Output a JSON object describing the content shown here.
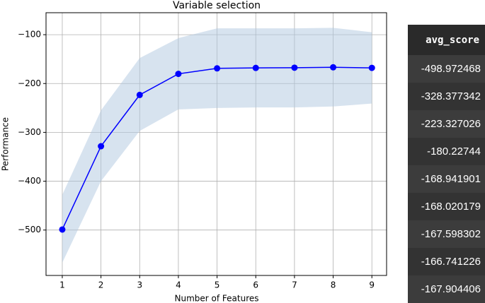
{
  "chart_data": {
    "type": "line",
    "title": "Variable selection",
    "xlabel": "Number of Features",
    "ylabel": "Performance",
    "x": [
      1,
      2,
      3,
      4,
      5,
      6,
      7,
      8,
      9
    ],
    "series": [
      {
        "color": "#0000ff",
        "values": [
          -498.972468,
          -328.377342,
          -223.327026,
          -180.22744,
          -168.941901,
          -168.020179,
          -167.598302,
          -166.741226,
          -167.904406
        ]
      }
    ],
    "band": {
      "color": "#b0c8e0",
      "upper": [
        -428,
        -255,
        -148,
        -107,
        -87,
        -87,
        -87,
        -86,
        -95
      ],
      "lower": [
        -567,
        -400,
        -297,
        -253,
        -250,
        -249,
        -249,
        -247,
        -241
      ]
    },
    "xlim": [
      0.58,
      9.38
    ],
    "ylim": [
      -593,
      -55
    ],
    "xticks": [
      1,
      2,
      3,
      4,
      5,
      6,
      7,
      8,
      9
    ],
    "yticks": [
      {
        "value": -500,
        "label": "−500"
      },
      {
        "value": -400,
        "label": "−400"
      },
      {
        "value": -300,
        "label": "−300"
      },
      {
        "value": -200,
        "label": "−200"
      },
      {
        "value": -100,
        "label": "−100"
      }
    ],
    "grid": true
  },
  "table": {
    "header": "avg_score",
    "rows": [
      "-498.972468",
      "-328.377342",
      "-223.327026",
      "-180.22744",
      "-168.941901",
      "-168.020179",
      "-167.598302",
      "-166.741226",
      "-167.904406"
    ]
  }
}
